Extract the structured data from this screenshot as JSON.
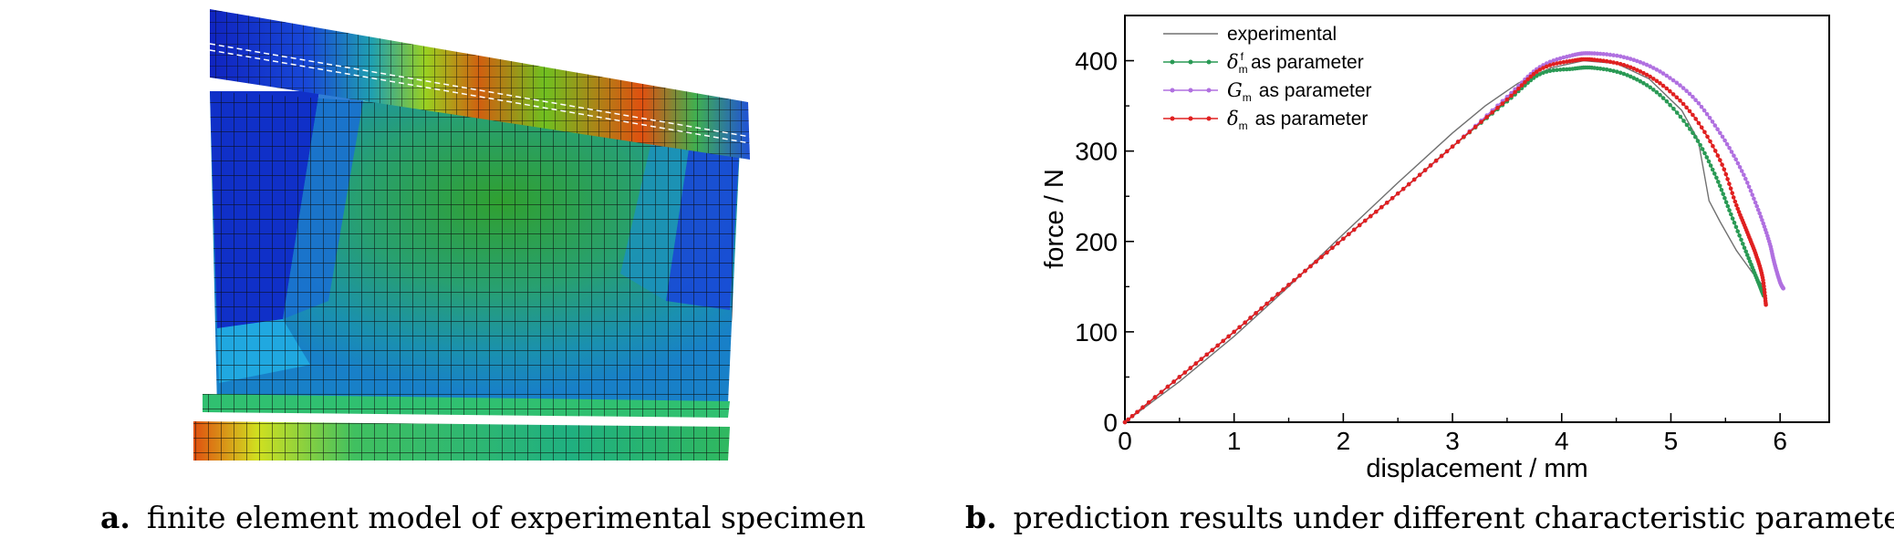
{
  "captions": {
    "a_letter": "a.",
    "a_text": "finite element model of experimental specimen",
    "b_letter": "b.",
    "b_text": "prediction results under different characteristic parameters"
  },
  "fem_model": {
    "colormap": [
      "#1020c0",
      "#1850e0",
      "#18a0c8",
      "#20a890",
      "#30b040",
      "#a0d020",
      "#f0e000",
      "#f06010",
      "#d01010"
    ]
  },
  "chart_data": {
    "type": "line",
    "xlabel": "displacement / mm",
    "ylabel": "force / N",
    "xlim": [
      0,
      6.45
    ],
    "ylim": [
      0,
      450
    ],
    "xticks": [
      0,
      1,
      2,
      3,
      4,
      5,
      6
    ],
    "yticks": [
      0,
      100,
      200,
      300,
      400
    ],
    "grid": false,
    "legend_position": "top-left",
    "series": [
      {
        "name": "experimental",
        "color": "#707070",
        "marker": false,
        "points": [
          [
            0,
            0
          ],
          [
            0.5,
            45
          ],
          [
            1,
            95
          ],
          [
            1.5,
            150
          ],
          [
            2,
            208
          ],
          [
            2.5,
            265
          ],
          [
            3,
            320
          ],
          [
            3.3,
            350
          ],
          [
            3.6,
            375
          ],
          [
            3.9,
            392
          ],
          [
            4.2,
            400
          ],
          [
            4.5,
            397
          ],
          [
            4.8,
            380
          ],
          [
            5.1,
            345
          ],
          [
            5.25,
            312
          ],
          [
            5.35,
            245
          ],
          [
            5.45,
            222
          ],
          [
            5.6,
            190
          ],
          [
            5.75,
            165
          ],
          [
            5.85,
            150
          ]
        ]
      },
      {
        "name_symbol": "δ",
        "name_sub": "m",
        "name_sup": "f",
        "name_text": "as parameter",
        "color": "#2a9a55",
        "marker": true,
        "points": [
          [
            0,
            0
          ],
          [
            0.5,
            50
          ],
          [
            1,
            100
          ],
          [
            1.5,
            152
          ],
          [
            2,
            203
          ],
          [
            2.5,
            253
          ],
          [
            3,
            305
          ],
          [
            3.5,
            355
          ],
          [
            3.8,
            385
          ],
          [
            4.1,
            391
          ],
          [
            4.3,
            392
          ],
          [
            4.6,
            384
          ],
          [
            4.9,
            362
          ],
          [
            5.2,
            320
          ],
          [
            5.4,
            275
          ],
          [
            5.55,
            230
          ],
          [
            5.7,
            185
          ],
          [
            5.8,
            155
          ],
          [
            5.85,
            140
          ]
        ]
      },
      {
        "name_symbol": "G",
        "name_sub": "m",
        "name_text": "as parameter",
        "color": "#b070e0",
        "marker": true,
        "points": [
          [
            0,
            0
          ],
          [
            0.5,
            50
          ],
          [
            1,
            100
          ],
          [
            1.5,
            152
          ],
          [
            2,
            203
          ],
          [
            2.5,
            253
          ],
          [
            3,
            305
          ],
          [
            3.5,
            360
          ],
          [
            3.8,
            393
          ],
          [
            4.1,
            406
          ],
          [
            4.3,
            408
          ],
          [
            4.6,
            403
          ],
          [
            4.9,
            388
          ],
          [
            5.2,
            360
          ],
          [
            5.45,
            320
          ],
          [
            5.65,
            278
          ],
          [
            5.8,
            235
          ],
          [
            5.9,
            200
          ],
          [
            5.95,
            175
          ],
          [
            6.0,
            155
          ],
          [
            6.03,
            148
          ]
        ]
      },
      {
        "name_symbol": "δ",
        "name_sub": "m",
        "name_text": "as parameter",
        "color": "#e02020",
        "marker": true,
        "points": [
          [
            0,
            0
          ],
          [
            0.5,
            50
          ],
          [
            1,
            100
          ],
          [
            1.5,
            152
          ],
          [
            2,
            203
          ],
          [
            2.5,
            253
          ],
          [
            3,
            305
          ],
          [
            3.5,
            357
          ],
          [
            3.8,
            390
          ],
          [
            4.1,
            400
          ],
          [
            4.3,
            401
          ],
          [
            4.6,
            394
          ],
          [
            4.9,
            375
          ],
          [
            5.2,
            340
          ],
          [
            5.45,
            290
          ],
          [
            5.6,
            240
          ],
          [
            5.7,
            210
          ],
          [
            5.78,
            185
          ],
          [
            5.84,
            160
          ],
          [
            5.87,
            130
          ]
        ]
      }
    ]
  }
}
